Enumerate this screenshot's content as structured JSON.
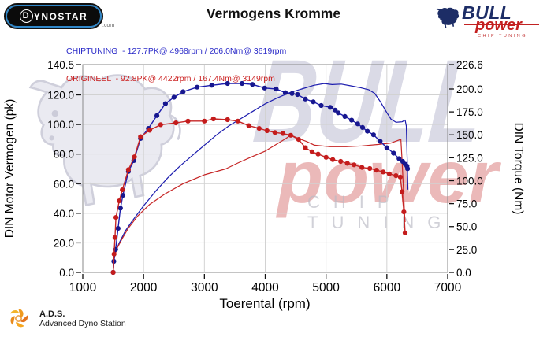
{
  "header": {
    "brand_logo": {
      "d": "D",
      "rest": "YNOSTAR",
      "suffix": ".com"
    },
    "title": "Vermogens Kromme",
    "vendor_logo": {
      "line1": "BULL",
      "line2": "power",
      "line3": "CHIP TUNING"
    }
  },
  "legend": [
    {
      "label": "CHIPTUNING  - 127.7PK@ 4968rpm / 206.0Nm@ 3619rpm",
      "color": "#2a2ac8"
    },
    {
      "label": "ORIGINEEL  - 92.8PK@ 4422rpm / 167.4Nm@ 3149rpm",
      "color": "#cc2222"
    }
  ],
  "watermark": {
    "line1": "BULL",
    "line2": "power",
    "line3": "CHIP TUNING"
  },
  "footer": {
    "abbr": "A.D.S.",
    "name": "Advanced Dyno Station"
  },
  "chart_data": {
    "type": "line",
    "title": "Vermogens Kromme",
    "xlabel": "Toerental (rpm)",
    "ylabel_left": "DIN Motor Vermogen (pk)",
    "ylabel_right": "DIN Torque (Nm)",
    "xlim": [
      1000,
      7000
    ],
    "x_ticks": [
      1000,
      2000,
      3000,
      4000,
      5000,
      6000,
      7000
    ],
    "ylim_left": [
      0,
      140.5
    ],
    "y_left_ticks": [
      140.5,
      120,
      100,
      80,
      60,
      40,
      20,
      0
    ],
    "ylim_right": [
      0,
      226.6
    ],
    "y_right_ticks": [
      226.6,
      200,
      175,
      150,
      125,
      100,
      75,
      50,
      25,
      0
    ],
    "grid": true,
    "grid_color": "#d2d2d2",
    "border_color": "#8a8a8a",
    "peaks": {
      "chiptuning": {
        "power_pk": 127.7,
        "power_rpm": 4968,
        "torque_nm": 206.0,
        "torque_rpm": 3619
      },
      "origineel": {
        "power_pk": 92.8,
        "power_rpm": 4422,
        "torque_nm": 167.4,
        "torque_rpm": 3149
      }
    },
    "series": [
      {
        "name": "chiptuning-power",
        "unit": "pk",
        "axis": "left",
        "color": "#1c1cae",
        "marker": false,
        "points": [
          [
            1500,
            0
          ],
          [
            1510,
            8
          ],
          [
            1540,
            14
          ],
          [
            1600,
            20
          ],
          [
            1700,
            28
          ],
          [
            1800,
            34
          ],
          [
            2000,
            45
          ],
          [
            2200,
            55
          ],
          [
            2400,
            64
          ],
          [
            2600,
            72
          ],
          [
            2800,
            79
          ],
          [
            3000,
            86
          ],
          [
            3200,
            93
          ],
          [
            3400,
            99
          ],
          [
            3600,
            104
          ],
          [
            3800,
            109
          ],
          [
            4000,
            114
          ],
          [
            4200,
            118
          ],
          [
            4400,
            121.5
          ],
          [
            4600,
            124
          ],
          [
            4800,
            126.5
          ],
          [
            4968,
            127.7
          ],
          [
            5100,
            127
          ],
          [
            5250,
            127.3
          ],
          [
            5400,
            126.2
          ],
          [
            5550,
            125
          ],
          [
            5700,
            123.5
          ],
          [
            5800,
            121
          ],
          [
            5900,
            115
          ],
          [
            6000,
            108
          ],
          [
            6070,
            103.5
          ],
          [
            6150,
            101.5
          ],
          [
            6250,
            101.8
          ],
          [
            6300,
            103
          ],
          [
            6320,
            99
          ],
          [
            6335,
            75
          ],
          [
            6345,
            56
          ]
        ]
      },
      {
        "name": "origineel-power",
        "unit": "pk",
        "axis": "left",
        "color": "#c62626",
        "marker": false,
        "points": [
          [
            1500,
            0
          ],
          [
            1520,
            10
          ],
          [
            1560,
            16
          ],
          [
            1650,
            23
          ],
          [
            1750,
            30
          ],
          [
            1900,
            38
          ],
          [
            2100,
            46
          ],
          [
            2350,
            53
          ],
          [
            2650,
            60
          ],
          [
            3000,
            66
          ],
          [
            3350,
            70
          ],
          [
            3550,
            74
          ],
          [
            3770,
            78
          ],
          [
            4000,
            82
          ],
          [
            4200,
            87
          ],
          [
            4320,
            90
          ],
          [
            4422,
            92.8
          ],
          [
            4550,
            90.5
          ],
          [
            4680,
            88.5
          ],
          [
            4810,
            86
          ],
          [
            5070,
            85
          ],
          [
            5330,
            85
          ],
          [
            5590,
            85.5
          ],
          [
            5850,
            86.5
          ],
          [
            6070,
            87.5
          ],
          [
            6200,
            89.5
          ],
          [
            6230,
            90
          ],
          [
            6250,
            76
          ],
          [
            6270,
            58
          ],
          [
            6290,
            40
          ],
          [
            6300,
            34
          ]
        ]
      },
      {
        "name": "chiptuning-torque",
        "unit": "Nm",
        "axis": "right",
        "color": "#1c1cae",
        "marker": true,
        "marker_color": "#17178f",
        "points": [
          [
            1500,
            0
          ],
          [
            1510,
            12
          ],
          [
            1540,
            25
          ],
          [
            1580,
            48
          ],
          [
            1620,
            70
          ],
          [
            1660,
            84
          ],
          [
            1750,
            110
          ],
          [
            1840,
            122
          ],
          [
            1950,
            146
          ],
          [
            2080,
            157
          ],
          [
            2220,
            171
          ],
          [
            2360,
            184
          ],
          [
            2500,
            191
          ],
          [
            2650,
            197
          ],
          [
            2880,
            202
          ],
          [
            3120,
            204
          ],
          [
            3380,
            206
          ],
          [
            3619,
            206
          ],
          [
            3790,
            205
          ],
          [
            3990,
            201
          ],
          [
            4180,
            200
          ],
          [
            4330,
            196
          ],
          [
            4440,
            195
          ],
          [
            4530,
            194
          ],
          [
            4660,
            189
          ],
          [
            4790,
            186
          ],
          [
            4920,
            182
          ],
          [
            5070,
            180
          ],
          [
            5150,
            177
          ],
          [
            5200,
            174
          ],
          [
            5310,
            170
          ],
          [
            5420,
            166
          ],
          [
            5520,
            162
          ],
          [
            5600,
            158
          ],
          [
            5680,
            154
          ],
          [
            5780,
            150
          ],
          [
            5890,
            143
          ],
          [
            6000,
            136
          ],
          [
            6110,
            130
          ],
          [
            6200,
            124
          ],
          [
            6260,
            121
          ],
          [
            6300,
            118
          ],
          [
            6330,
            116
          ],
          [
            6340,
            113
          ]
        ]
      },
      {
        "name": "origineel-torque",
        "unit": "Nm",
        "axis": "right",
        "color": "#c62626",
        "marker": true,
        "marker_color": "#c41c1c",
        "points": [
          [
            1500,
            0
          ],
          [
            1515,
            20
          ],
          [
            1530,
            38
          ],
          [
            1545,
            60
          ],
          [
            1600,
            78
          ],
          [
            1650,
            90
          ],
          [
            1750,
            112
          ],
          [
            1850,
            126
          ],
          [
            1950,
            148
          ],
          [
            2100,
            155
          ],
          [
            2280,
            161
          ],
          [
            2530,
            163
          ],
          [
            2730,
            165
          ],
          [
            3000,
            165
          ],
          [
            3149,
            167.4
          ],
          [
            3380,
            166.5
          ],
          [
            3550,
            165
          ],
          [
            3730,
            160
          ],
          [
            3900,
            157
          ],
          [
            4030,
            154.5
          ],
          [
            4160,
            152.5
          ],
          [
            4290,
            151.5
          ],
          [
            4420,
            149.5
          ],
          [
            4550,
            145
          ],
          [
            4660,
            136
          ],
          [
            4770,
            131.5
          ],
          [
            4870,
            129
          ],
          [
            5000,
            125.5
          ],
          [
            5110,
            123
          ],
          [
            5240,
            121
          ],
          [
            5350,
            119
          ],
          [
            5460,
            117.3
          ],
          [
            5590,
            114.5
          ],
          [
            5720,
            113.3
          ],
          [
            5830,
            111.5
          ],
          [
            5940,
            109.5
          ],
          [
            6040,
            107.5
          ],
          [
            6150,
            105.5
          ],
          [
            6220,
            104
          ],
          [
            6250,
            88
          ],
          [
            6280,
            66
          ],
          [
            6300,
            43
          ]
        ]
      }
    ]
  }
}
